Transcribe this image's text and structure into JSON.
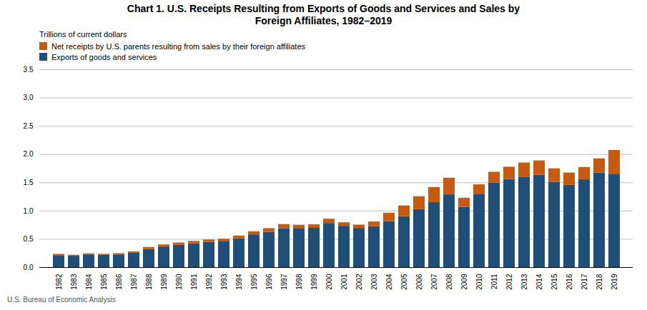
{
  "chart_data": {
    "type": "bar",
    "stacked": true,
    "title": "Chart 1. U.S. Receipts Resulting from Exports of Goods and Services and Sales by\nForeign Affiliates, 1982–2019",
    "y_label": "Trillions of current dollars",
    "caption": "U.S. Bureau of Economic Analysis",
    "categories": [
      "1982",
      "1983",
      "1984",
      "1985",
      "1986",
      "1987",
      "1988",
      "1989",
      "1990",
      "1991",
      "1992",
      "1993",
      "1994",
      "1995",
      "1996",
      "1997",
      "1998",
      "1999",
      "2000",
      "2001",
      "2002",
      "2003",
      "2004",
      "2005",
      "2006",
      "2007",
      "2008",
      "2009",
      "2010",
      "2011",
      "2012",
      "2013",
      "2014",
      "2015",
      "2016",
      "2017",
      "2018",
      "2019"
    ],
    "series": [
      {
        "name": "Exports of goods and services",
        "color": "#1F4E79",
        "values": [
          0.212,
          0.201,
          0.224,
          0.216,
          0.224,
          0.254,
          0.322,
          0.364,
          0.394,
          0.421,
          0.448,
          0.464,
          0.512,
          0.579,
          0.625,
          0.689,
          0.682,
          0.695,
          0.781,
          0.731,
          0.693,
          0.724,
          0.814,
          0.901,
          1.026,
          1.149,
          1.287,
          1.068,
          1.289,
          1.497,
          1.561,
          1.593,
          1.635,
          1.511,
          1.455,
          1.553,
          1.671,
          1.652
        ]
      },
      {
        "name": "Net receipts by U.S. parents resulting from sales by their foreign affiliates",
        "color": "#C55A11",
        "values": [
          0.022,
          0.018,
          0.019,
          0.019,
          0.022,
          0.024,
          0.034,
          0.038,
          0.041,
          0.043,
          0.041,
          0.038,
          0.047,
          0.055,
          0.065,
          0.073,
          0.068,
          0.062,
          0.076,
          0.063,
          0.059,
          0.083,
          0.148,
          0.19,
          0.229,
          0.268,
          0.295,
          0.159,
          0.175,
          0.19,
          0.216,
          0.258,
          0.253,
          0.237,
          0.218,
          0.218,
          0.253,
          0.42
        ]
      }
    ],
    "ylim": [
      0,
      3.5
    ],
    "yticks": [
      {
        "value": 0,
        "label": "0.0"
      },
      0.5,
      {
        "value": 1,
        "label": "1.0"
      },
      1.5,
      {
        "value": 2,
        "label": "2.0"
      },
      2.5,
      {
        "value": 3,
        "label": "3.0"
      },
      3.5
    ],
    "grid": true,
    "legend": "upper left"
  }
}
